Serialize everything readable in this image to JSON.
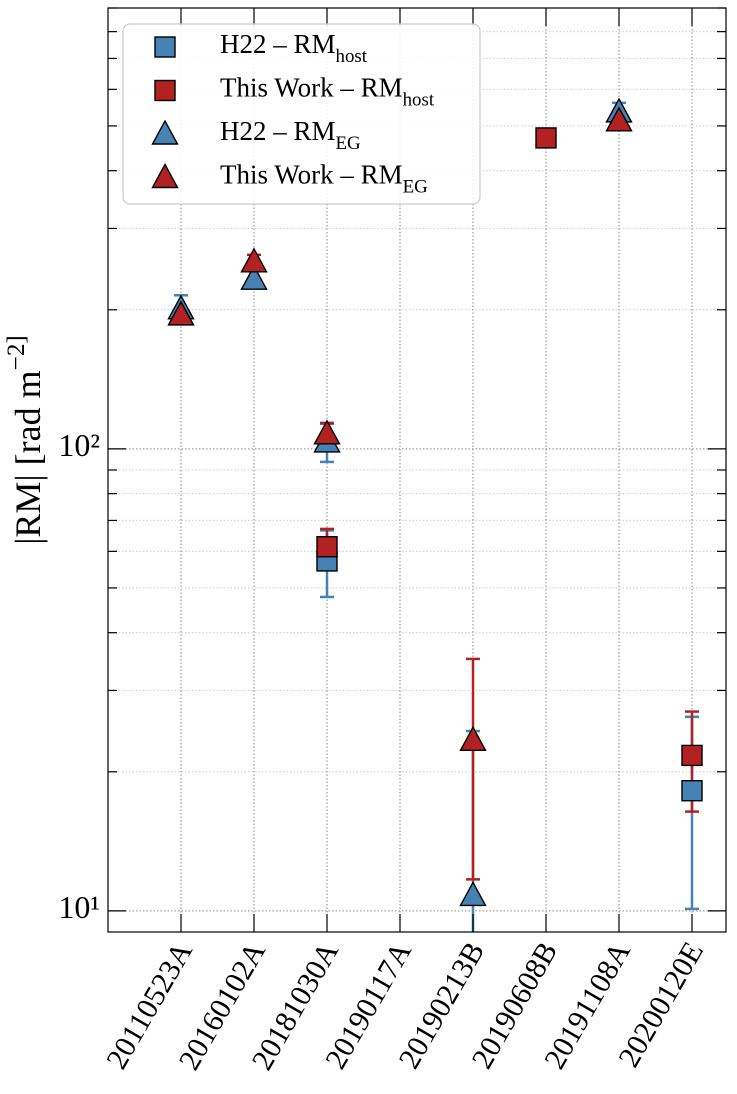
{
  "chart_data": {
    "type": "scatter",
    "ylabel": "|RM| [rad m^−2]",
    "categories": [
      "20110523A",
      "20160102A",
      "20181030A",
      "20190117A",
      "20190213B",
      "20190608B",
      "20191108A",
      "20200120E"
    ],
    "log_y": true,
    "grid": true,
    "legend": "upper left",
    "ylim": [
      9,
      900
    ],
    "yticks": [
      {
        "value": 10,
        "label": "10¹"
      },
      {
        "value": 100,
        "label": "10²"
      }
    ],
    "yminor": [
      20,
      30,
      40,
      50,
      60,
      70,
      80,
      90,
      200,
      300,
      400,
      500,
      600,
      700,
      800,
      900
    ],
    "series": [
      {
        "name": "H22 – RM_host",
        "marker": "square",
        "color": "#4682b4",
        "values": [
          null,
          null,
          57.2,
          null,
          null,
          null,
          null,
          18.2
        ],
        "errors": [
          null,
          null,
          9.4,
          null,
          null,
          null,
          null,
          8.1
        ]
      },
      {
        "name": "This Work – RM_host",
        "marker": "square",
        "color": "#b22222",
        "values": [
          null,
          null,
          61.4,
          null,
          null,
          471,
          null,
          21.7
        ],
        "errors": [
          null,
          null,
          5.7,
          null,
          null,
          null,
          null,
          5.3
        ]
      },
      {
        "name": "H22 – RM_EG",
        "marker": "triangle",
        "color": "#4682b4",
        "values": [
          201,
          233,
          103.5,
          null,
          10.8,
          null,
          536,
          null
        ],
        "errors": [
          14,
          null,
          9.8,
          null,
          13.7,
          null,
          25,
          null
        ]
      },
      {
        "name": "This Work – RM_EG",
        "marker": "triangle",
        "color": "#b22222",
        "values": [
          195,
          254,
          107.8,
          null,
          23.4,
          null,
          513,
          null
        ],
        "errors": [
          null,
          9,
          6,
          null,
          11.7,
          null,
          null,
          null
        ]
      }
    ]
  }
}
